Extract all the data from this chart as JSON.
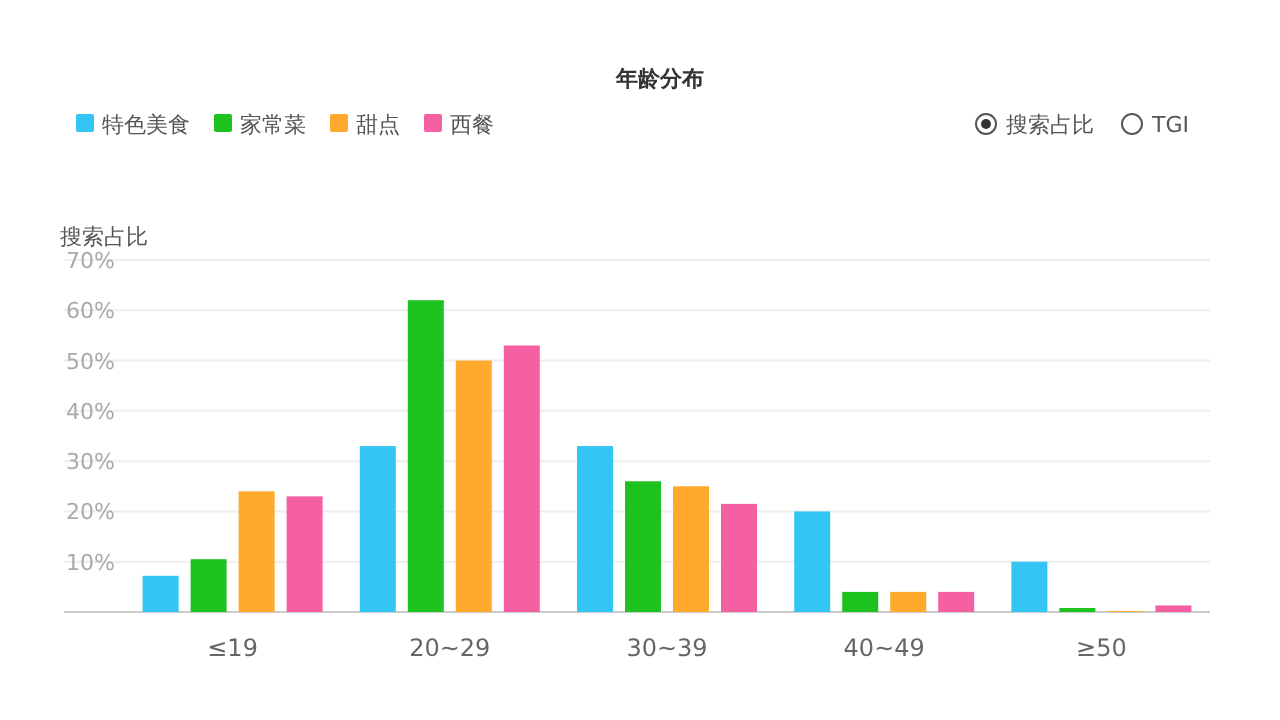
{
  "chart_data": {
    "type": "bar",
    "title": "年龄分布",
    "ylabel": "搜索占比",
    "categories": [
      "≤19",
      "20~29",
      "30~39",
      "40~49",
      "≥50"
    ],
    "series": [
      {
        "name": "特色美食",
        "color": "#33c5f3",
        "values": [
          7.2,
          33,
          33,
          20,
          10
        ]
      },
      {
        "name": "家常菜",
        "color": "#1ec21e",
        "values": [
          10.5,
          62,
          26,
          4,
          0.8
        ]
      },
      {
        "name": "甜点",
        "color": "#ffaa2c",
        "values": [
          24,
          50,
          25,
          4,
          0.2
        ]
      },
      {
        "name": "西餐",
        "color": "#f560a3",
        "values": [
          23,
          53,
          21.5,
          4,
          1.3
        ]
      }
    ],
    "ylim": [
      0,
      70
    ],
    "yticks": [
      {
        "value": 10,
        "label": "10%"
      },
      {
        "value": 20,
        "label": "20%"
      },
      {
        "value": 30,
        "label": "30%"
      },
      {
        "value": 40,
        "label": "40%"
      },
      {
        "value": 50,
        "label": "50%"
      },
      {
        "value": 60,
        "label": "60%"
      },
      {
        "value": 70,
        "label": "70%"
      }
    ],
    "grid": "y",
    "legend": "top left",
    "annotations": [
      "搜索占比",
      "TGI"
    ]
  }
}
